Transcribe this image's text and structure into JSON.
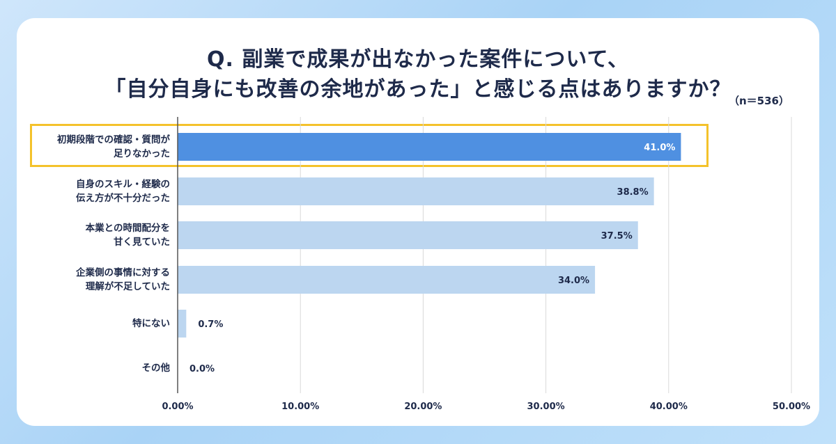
{
  "chart_data": {
    "type": "bar",
    "orientation": "horizontal",
    "title": [
      "Q. 副業で成果が出なかった案件について、",
      "「自分自身にも改善の余地があった」と感じる点はありますか？"
    ],
    "note": "（n＝536）",
    "categories": [
      [
        "初期段階での確認・質問が",
        "足りなかった"
      ],
      [
        "自身のスキル・経験の",
        "伝え方が不十分だった"
      ],
      [
        "本業との時間配分を",
        "甘く見ていた"
      ],
      [
        "企業側の事情に対する",
        "理解が不足していた"
      ],
      [
        "特にない"
      ],
      [
        "その他"
      ]
    ],
    "values": [
      41.0,
      38.8,
      37.5,
      34.0,
      0.7,
      0.0
    ],
    "value_labels": [
      "41.0%",
      "38.8%",
      "37.5%",
      "34.0%",
      "0.7%",
      "0.0%"
    ],
    "x_ticks": [
      "0.00%",
      "10.00%",
      "20.00%",
      "30.00%",
      "40.00%",
      "50.00%"
    ],
    "xlim": [
      0,
      50
    ],
    "grid": true,
    "highlight_index": 0,
    "colors": {
      "highlight_bar": "#4f90e1",
      "bar": "#bcd6f0",
      "grid": "#d9d9d9",
      "axis": "#555555",
      "text": "#1e2a4a",
      "highlight_border": "#f4c22b"
    }
  }
}
